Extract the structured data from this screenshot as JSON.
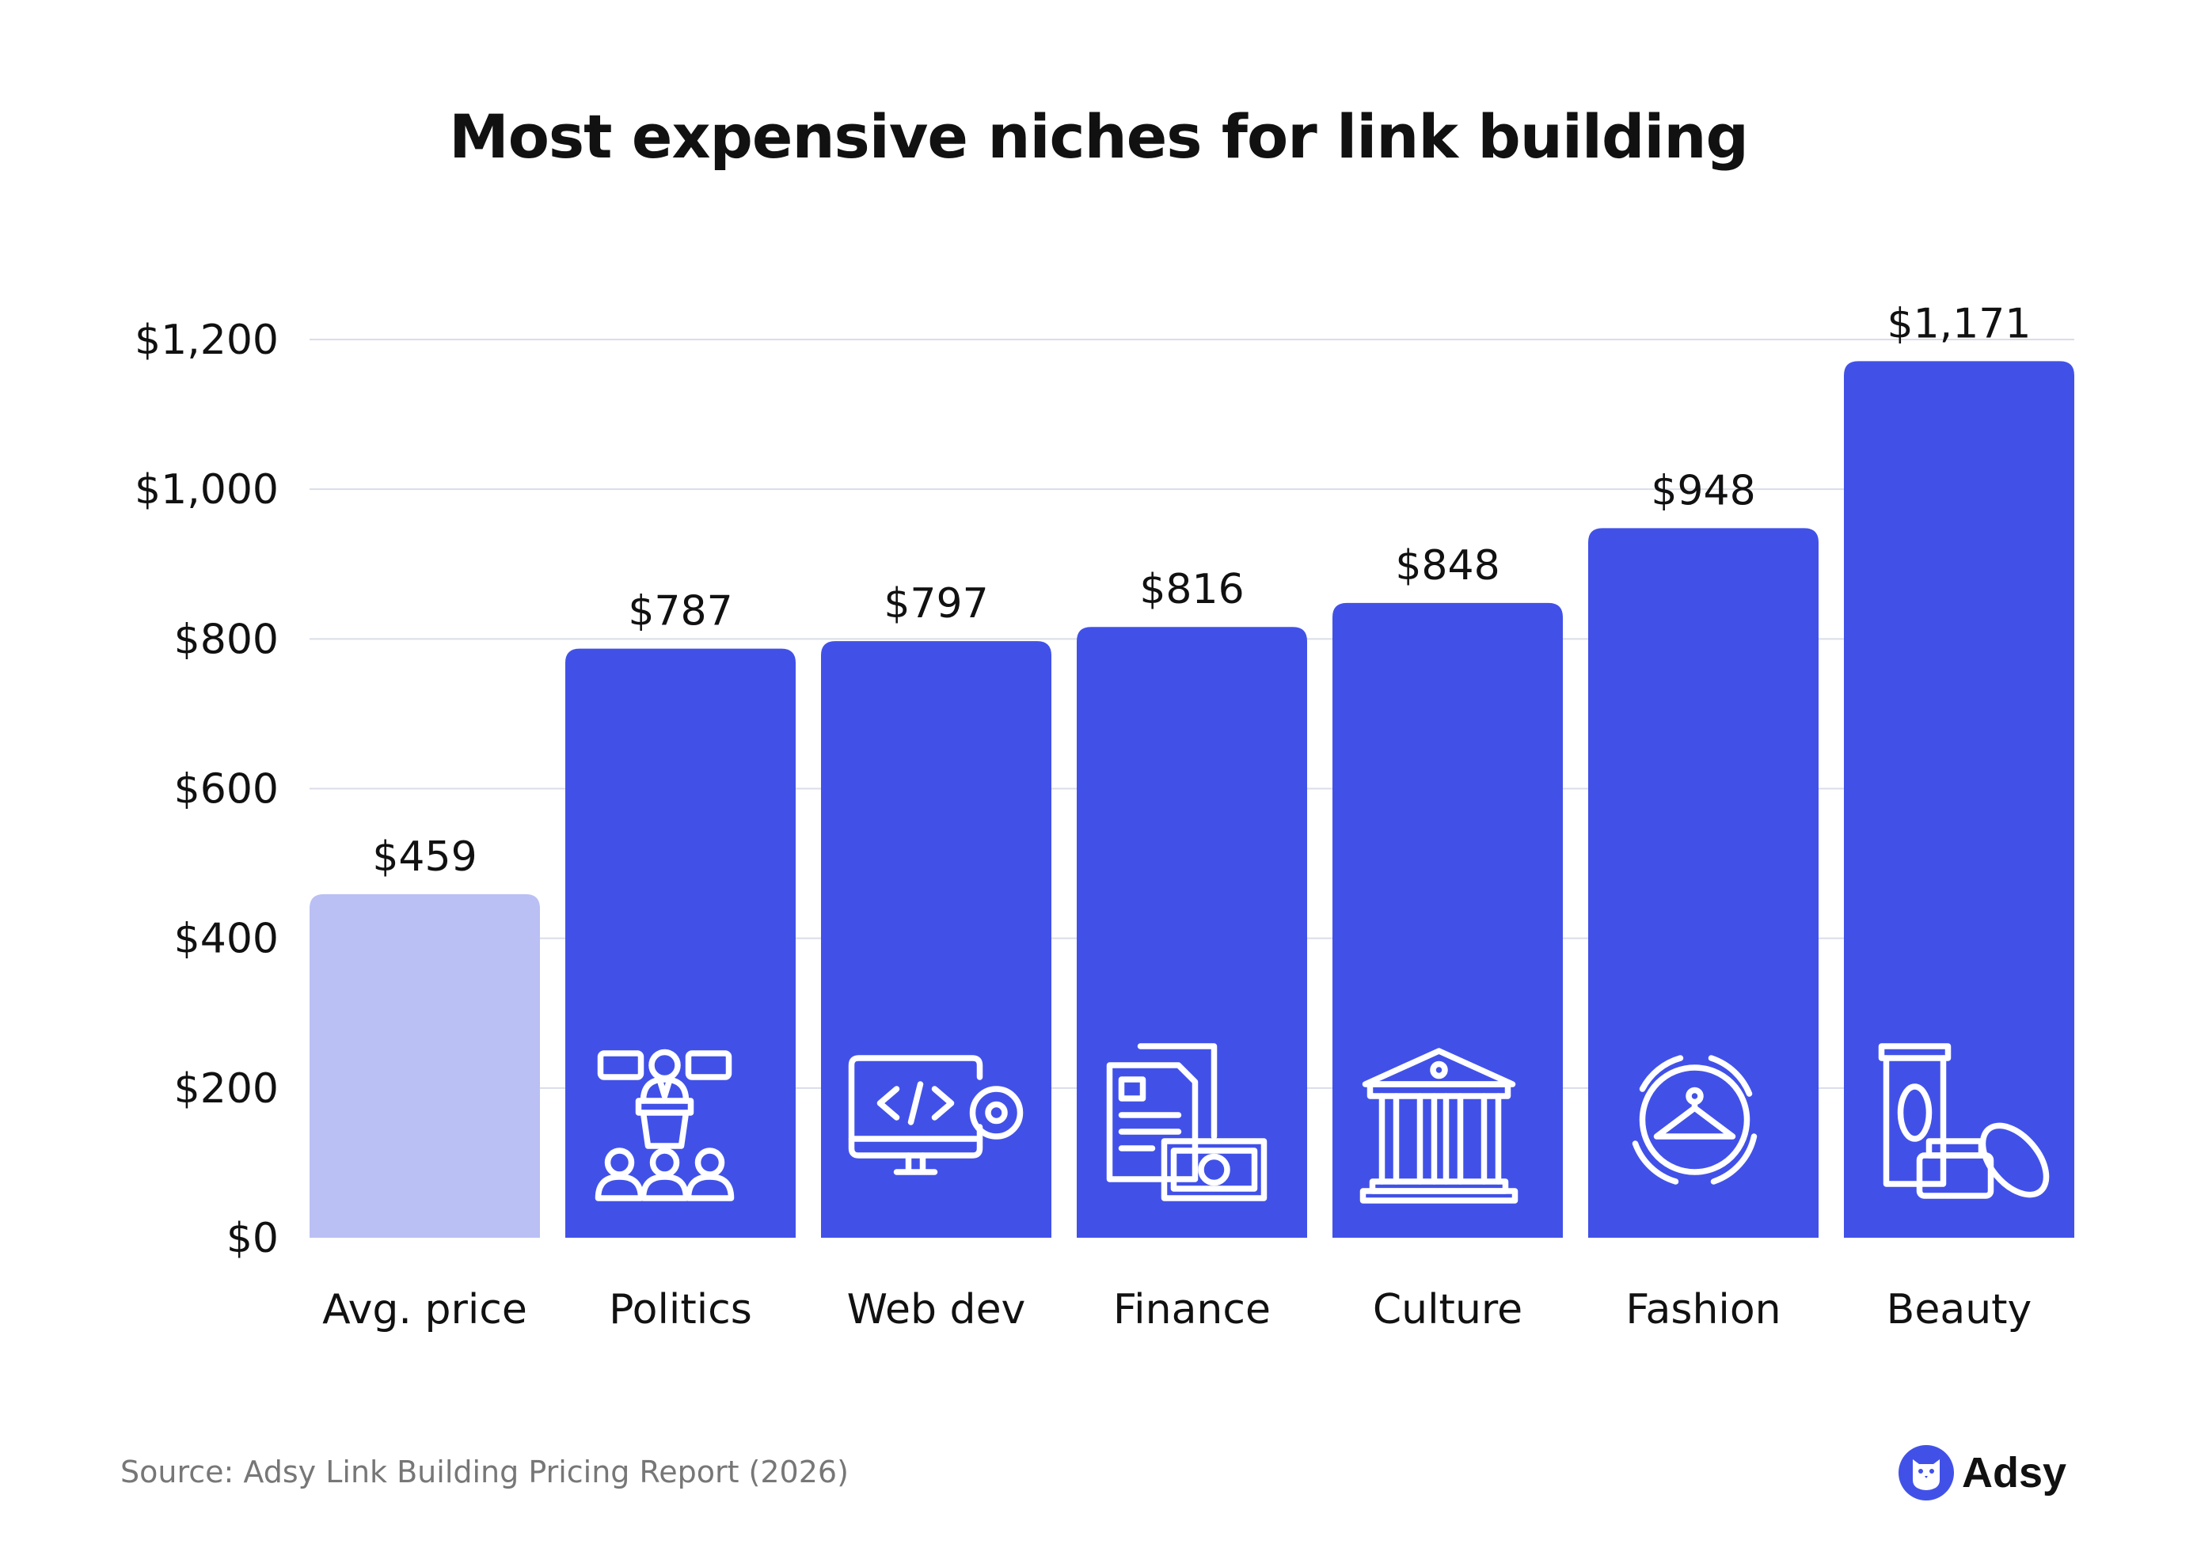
{
  "colors": {
    "bar": "#4151E8",
    "highlight_bar": "#BAC0F4",
    "grid": "#DADDE8",
    "text": "#111111",
    "source": "#777777"
  },
  "chart_data": {
    "type": "bar",
    "title": "Most expensive niches for link building",
    "xlabel": "",
    "ylabel": "",
    "ylim": [
      0,
      1200
    ],
    "yticks": [
      0,
      200,
      400,
      600,
      800,
      1000,
      1200
    ],
    "ytick_labels": [
      "$0",
      "$200",
      "$400",
      "$600",
      "$800",
      "$1,000",
      "$1,200"
    ],
    "grid": true,
    "categories": [
      "Avg. price",
      "Politics",
      "Web dev",
      "Finance",
      "Culture",
      "Fashion",
      "Beauty"
    ],
    "values": [
      459,
      787,
      797,
      816,
      848,
      948,
      1171
    ],
    "data_labels": [
      "$459",
      "$787",
      "$797",
      "$816",
      "$848",
      "$948",
      "$1,171"
    ],
    "icons": [
      "",
      "speaker-podium-icon",
      "code-monitor-gear-icon",
      "documents-money-icon",
      "museum-building-icon",
      "hanger-cycle-icon",
      "cosmetics-icon"
    ]
  },
  "footer": {
    "source": "Source: Adsy Link Building Pricing Report (2026)",
    "brand": "Adsy"
  }
}
